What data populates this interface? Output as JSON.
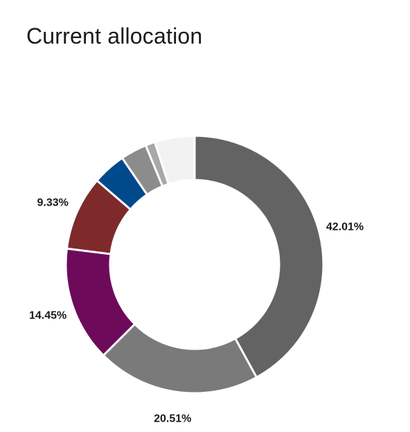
{
  "header": {
    "title": "Current allocation"
  },
  "chart_data": {
    "type": "pie",
    "donut": true,
    "title": "Current allocation",
    "categories": [
      "",
      "",
      "",
      "",
      "",
      "",
      "",
      ""
    ],
    "values": [
      42.01,
      20.51,
      14.45,
      9.33,
      4.2,
      3.3,
      1.2,
      5.0
    ],
    "labels": [
      "42.01%",
      "20.51%",
      "14.45%",
      "9.33%",
      "",
      "",
      "",
      ""
    ],
    "colors": [
      "#636363",
      "#7a7a7a",
      "#6e0a5a",
      "#7f2a2a",
      "#004a8c",
      "#8c8c8c",
      "#a8a8a8",
      "#f2f2f2"
    ],
    "legend": "none",
    "start_angle": "top",
    "direction": "clockwise"
  }
}
